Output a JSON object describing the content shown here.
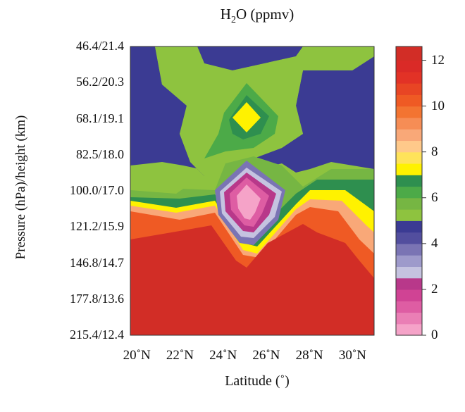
{
  "chart_data": {
    "type": "heatmap",
    "title_main": "H",
    "title_sub": "2",
    "title_rest": "O (ppmv)",
    "xlabel": "Latitude (˚)",
    "ylabel": "Pressure (hPa)/height (km)",
    "x_ticks": [
      "20˚N",
      "22˚N",
      "24˚N",
      "26˚N",
      "28˚N",
      "30˚N"
    ],
    "x_tick_values": [
      20,
      22,
      24,
      26,
      28,
      30
    ],
    "xlim": [
      19.7,
      31
    ],
    "y_ticks": [
      "46.4/21.4",
      "56.2/20.3",
      "68.1/19.1",
      "82.5/18.0",
      "100.0/17.0",
      "121.2/15.9",
      "146.8/14.7",
      "177.8/13.6",
      "215.4/12.4"
    ],
    "colorbar": {
      "ticks": [
        "0",
        "2",
        "4",
        "6",
        "8",
        "10",
        "12"
      ],
      "tick_values": [
        0,
        2,
        4,
        6,
        8,
        10,
        12
      ],
      "range": [
        0,
        12.6
      ],
      "levels": [
        0,
        0.5,
        1,
        1.5,
        2,
        2.5,
        3,
        3.5,
        4,
        4.5,
        5,
        5.5,
        6,
        6.5,
        7,
        7.5,
        8,
        8.5,
        9,
        9.5,
        10,
        10.5,
        11,
        11.5,
        12,
        12.6
      ],
      "colors": [
        "#f5a3c8",
        "#ea7fb5",
        "#de5da3",
        "#d04394",
        "#b8388a",
        "#c5c3e0",
        "#9e9acb",
        "#7a74b4",
        "#524e9e",
        "#3b3b93",
        "#8ec33f",
        "#76b643",
        "#4caa48",
        "#2e8f4f",
        "#fff200",
        "#ffe35a",
        "#ffc98a",
        "#f9a878",
        "#f68d55",
        "#f37431",
        "#ef5a24",
        "#e84524",
        "#e23226",
        "#da2a27",
        "#d22d26"
      ]
    },
    "grid": false
  }
}
